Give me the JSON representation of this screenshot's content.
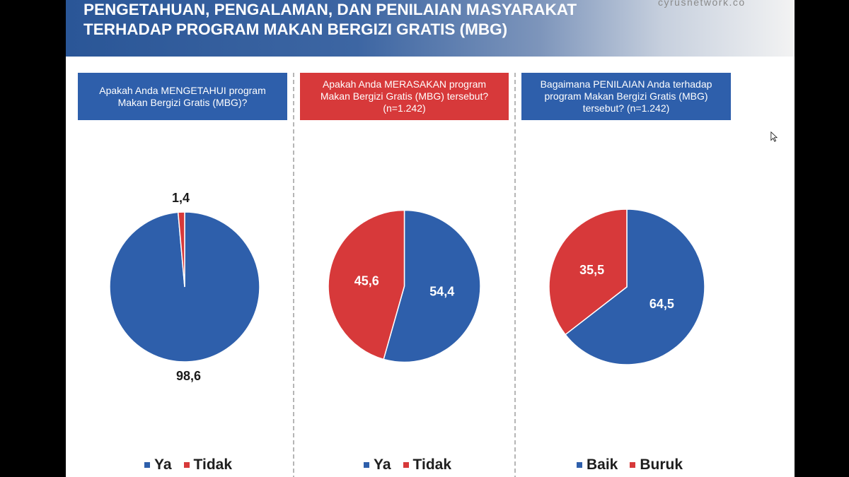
{
  "header": {
    "title_lines": [
      "PENGETAHUAN, PENGALAMAN, DAN PENILAIAN MASYARAKAT",
      "TERHADAP PROGRAM MAKAN BERGIZI GRATIS (MBG)"
    ],
    "website": "cyrusnetwork.co"
  },
  "chart_data": [
    {
      "type": "pie",
      "question_lines": [
        "Apakah Anda MENGETAHUI program",
        "Makan Bergizi Gratis (MBG)?"
      ],
      "question_box_color": "#2e5fab",
      "slices": [
        {
          "label": "Ya",
          "value": 98.6,
          "value_label": "98,6",
          "color": "#2e5fab"
        },
        {
          "label": "Tidak",
          "value": 1.4,
          "value_label": "1,4",
          "color": "#d7393a"
        }
      ],
      "legend_position": "bottom"
    },
    {
      "type": "pie",
      "question_lines": [
        "Apakah Anda MERASAKAN program",
        "Makan Bergizi Gratis (MBG) tersebut?",
        "(n=1.242)"
      ],
      "question_box_color": "#d7393a",
      "slices": [
        {
          "label": "Ya",
          "value": 54.4,
          "value_label": "54,4",
          "color": "#2e5fab"
        },
        {
          "label": "Tidak",
          "value": 45.6,
          "value_label": "45,6",
          "color": "#d7393a"
        }
      ],
      "legend_position": "bottom"
    },
    {
      "type": "pie",
      "question_lines": [
        "Bagaimana PENILAIAN Anda terhadap",
        "program Makan Bergizi Gratis (MBG)",
        "tersebut? (n=1.242)"
      ],
      "question_box_color": "#2e5fab",
      "slices": [
        {
          "label": "Baik",
          "value": 64.5,
          "value_label": "64,5",
          "color": "#2e5fab"
        },
        {
          "label": "Buruk",
          "value": 35.5,
          "value_label": "35,5",
          "color": "#d7393a"
        }
      ],
      "legend_position": "bottom"
    }
  ]
}
